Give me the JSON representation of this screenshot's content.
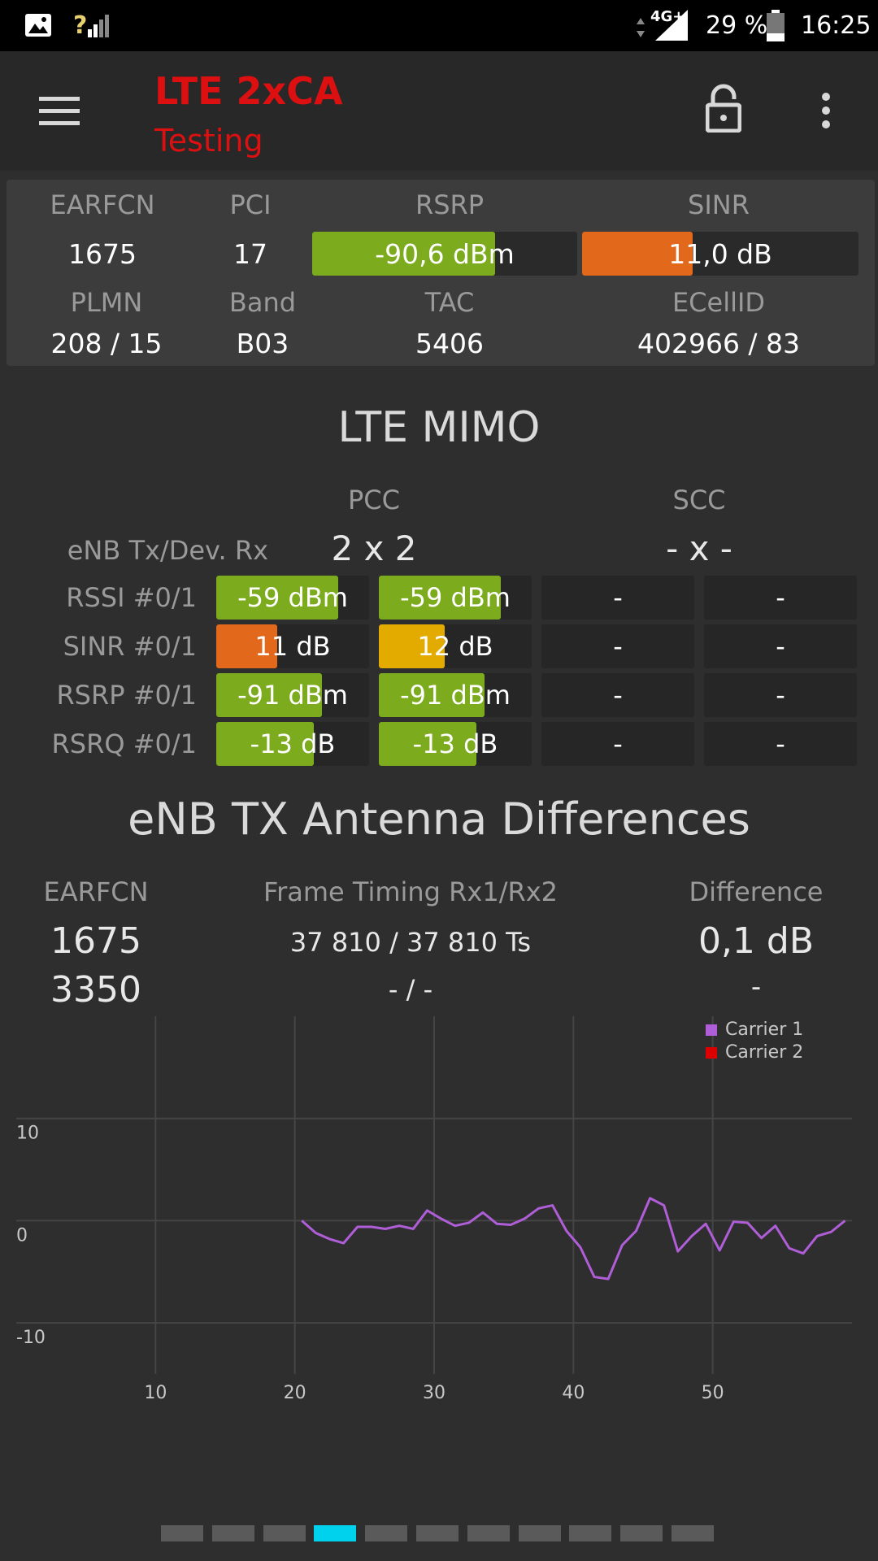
{
  "status_bar": {
    "network": "4G+",
    "signal_prefix": "?",
    "battery": "29 %",
    "time": "16:25"
  },
  "toolbar": {
    "title": "LTE 2xCA",
    "subtitle": "Testing",
    "icons": [
      "hamburger-menu-icon",
      "unlock-icon",
      "more-vert-icon"
    ]
  },
  "cell_info": {
    "earfcn_label": "EARFCN",
    "earfcn": "1675",
    "pci_label": "PCI",
    "pci": "17",
    "rsrp_label": "RSRP",
    "rsrp": "-90,6 dBm",
    "rsrp_level": 0.69,
    "sinr_label": "SINR",
    "sinr": "11,0 dB",
    "sinr_level": 0.4,
    "plmn_label": "PLMN",
    "plmn": "208 / 15",
    "band_label": "Band",
    "band": "B03",
    "tac_label": "TAC",
    "tac": "5406",
    "ecellid_label": "ECellID",
    "ecellid": "402966 / 83"
  },
  "colors": {
    "green": "#7cab1e",
    "orange": "#e2691b",
    "yellow": "#e3ab00",
    "carrier1": "#b05ed8",
    "carrier2": "#dd0000",
    "page_dot_active": "#00d2ee"
  },
  "mimo": {
    "title": "LTE MIMO",
    "pcc_label": "PCC",
    "scc_label": "SCC",
    "enb_label": "eNB Tx/Dev. Rx",
    "pcc_value": "2 x 2",
    "scc_value": "- x -",
    "rows": [
      {
        "label": "RSSI #0/1",
        "cells": [
          {
            "text": "-59 dBm",
            "level": 0.8,
            "color": "#7cab1e"
          },
          {
            "text": "-59 dBm",
            "level": 0.8,
            "color": "#7cab1e"
          },
          {
            "text": "-",
            "level": 0,
            "color": ""
          },
          {
            "text": "-",
            "level": 0,
            "color": ""
          }
        ]
      },
      {
        "label": "SINR #0/1",
        "cells": [
          {
            "text": "11 dB",
            "level": 0.4,
            "color": "#e2691b"
          },
          {
            "text": "12 dB",
            "level": 0.43,
            "color": "#e3ab00"
          },
          {
            "text": "-",
            "level": 0,
            "color": ""
          },
          {
            "text": "-",
            "level": 0,
            "color": ""
          }
        ]
      },
      {
        "label": "RSRP #0/1",
        "cells": [
          {
            "text": "-91 dBm",
            "level": 0.69,
            "color": "#7cab1e"
          },
          {
            "text": "-91 dBm",
            "level": 0.69,
            "color": "#7cab1e"
          },
          {
            "text": "-",
            "level": 0,
            "color": ""
          },
          {
            "text": "-",
            "level": 0,
            "color": ""
          }
        ]
      },
      {
        "label": "RSRQ #0/1",
        "cells": [
          {
            "text": "-13 dB",
            "level": 0.64,
            "color": "#7cab1e"
          },
          {
            "text": "-13 dB",
            "level": 0.64,
            "color": "#7cab1e"
          },
          {
            "text": "-",
            "level": 0,
            "color": ""
          },
          {
            "text": "-",
            "level": 0,
            "color": ""
          }
        ]
      }
    ]
  },
  "antenna": {
    "title": "eNB TX Antenna Differences",
    "earfcn_label": "EARFCN",
    "timing_label": "Frame Timing Rx1/Rx2",
    "diff_label": "Difference",
    "rows": [
      {
        "earfcn": "1675",
        "timing": "37 810 / 37 810 Ts",
        "diff": "0,1 dB"
      },
      {
        "earfcn": "3350",
        "timing": "- / -",
        "diff": "-"
      }
    ]
  },
  "chart_data": {
    "type": "line",
    "xlim": [
      0,
      60
    ],
    "ylim": [
      -15,
      20
    ],
    "x_ticks": [
      "10",
      "20",
      "30",
      "40",
      "50"
    ],
    "y_ticks": [
      "10",
      "0",
      "-10"
    ],
    "grid": true,
    "legend_position": "top-right",
    "series": [
      {
        "name": "Carrier 1",
        "x": [
          20.5,
          21.5,
          22.5,
          23.5,
          24.5,
          25.5,
          26.5,
          27.5,
          28.5,
          29.5,
          30.5,
          31.5,
          32.5,
          33.5,
          34.5,
          35.5,
          36.5,
          37.5,
          38.5,
          39.5,
          40.5,
          41.5,
          42.5,
          43.5,
          44.5,
          45.5,
          46.5,
          47.5,
          48.5,
          49.5,
          50.5,
          51.5,
          52.5,
          53.5,
          54.5,
          55.5,
          56.5,
          57.5,
          58.5,
          59.5
        ],
        "y": [
          0,
          -1.2,
          -1.8,
          -2.2,
          -0.6,
          -0.6,
          -0.8,
          -0.5,
          -0.8,
          1,
          0.2,
          -0.5,
          -0.2,
          0.8,
          -0.3,
          -0.4,
          0.2,
          1.2,
          1.5,
          -1,
          -2.6,
          -5.5,
          -5.7,
          -2.4,
          -1,
          2.2,
          1.5,
          -3,
          -1.5,
          -0.3,
          -2.9,
          -0.1,
          -0.2,
          -1.7,
          -0.5,
          -2.7,
          -3.2,
          -1.5,
          -1.1,
          0
        ]
      },
      {
        "name": "Carrier 2",
        "x": [],
        "y": []
      }
    ]
  },
  "pager": {
    "count": 11,
    "active": 3
  }
}
